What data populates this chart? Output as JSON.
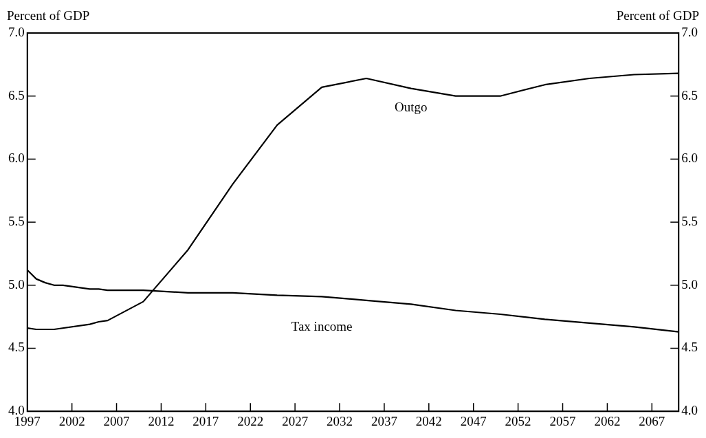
{
  "chart_data": {
    "type": "line",
    "ylabel": "Percent of GDP",
    "y2label": "Percent of GDP",
    "xlim": [
      1997,
      2070
    ],
    "xticks": [
      1997,
      2002,
      2007,
      2012,
      2017,
      2022,
      2027,
      2032,
      2037,
      2042,
      2047,
      2052,
      2057,
      2062,
      2067
    ],
    "ylim": [
      4.0,
      7.0
    ],
    "yticks": [
      {
        "value": 4,
        "label": "4.0"
      },
      {
        "value": 4.5,
        "label": "4.5"
      },
      {
        "value": 5,
        "label": "5.0"
      },
      {
        "value": 5.5,
        "label": "5.5"
      },
      {
        "value": 6,
        "label": "6.0"
      },
      {
        "value": 6.5,
        "label": "6.5"
      },
      {
        "value": 7,
        "label": "7.0"
      }
    ],
    "y2lim": [
      4.0,
      7.0
    ],
    "y2ticks": [
      {
        "value": 4,
        "label": "4.0"
      },
      {
        "value": 4.5,
        "label": "4.5"
      },
      {
        "value": 5,
        "label": "5.0"
      },
      {
        "value": 5.5,
        "label": "5.5"
      },
      {
        "value": 6,
        "label": "6.0"
      },
      {
        "value": 6.5,
        "label": "6.5"
      },
      {
        "value": 7,
        "label": "7.0"
      }
    ],
    "grid": false,
    "legend": false,
    "marker": "none",
    "line_style": "solid",
    "series": [
      {
        "name": "Outgo",
        "color": "#000000",
        "x": [
          1997,
          1998,
          2000,
          2004,
          2005,
          2006,
          2010,
          2015,
          2020,
          2025,
          2030,
          2035,
          2040,
          2045,
          2050,
          2055,
          2060,
          2065,
          2070
        ],
        "values": [
          4.66,
          4.65,
          4.65,
          4.69,
          4.71,
          4.72,
          4.87,
          5.28,
          5.8,
          6.27,
          6.57,
          6.64,
          6.56,
          6.5,
          6.5,
          6.59,
          6.64,
          6.67,
          6.68
        ]
      },
      {
        "name": "Tax income",
        "color": "#000000",
        "x": [
          1997,
          1998,
          1999,
          2000,
          2001,
          2004,
          2005,
          2006,
          2010,
          2015,
          2020,
          2025,
          2030,
          2035,
          2040,
          2045,
          2050,
          2055,
          2060,
          2065,
          2070
        ],
        "values": [
          5.12,
          5.05,
          5.02,
          5.0,
          5.0,
          4.97,
          4.97,
          4.96,
          4.96,
          4.94,
          4.94,
          4.92,
          4.91,
          4.88,
          4.85,
          4.8,
          4.77,
          4.73,
          4.7,
          4.67,
          4.63
        ]
      }
    ]
  }
}
